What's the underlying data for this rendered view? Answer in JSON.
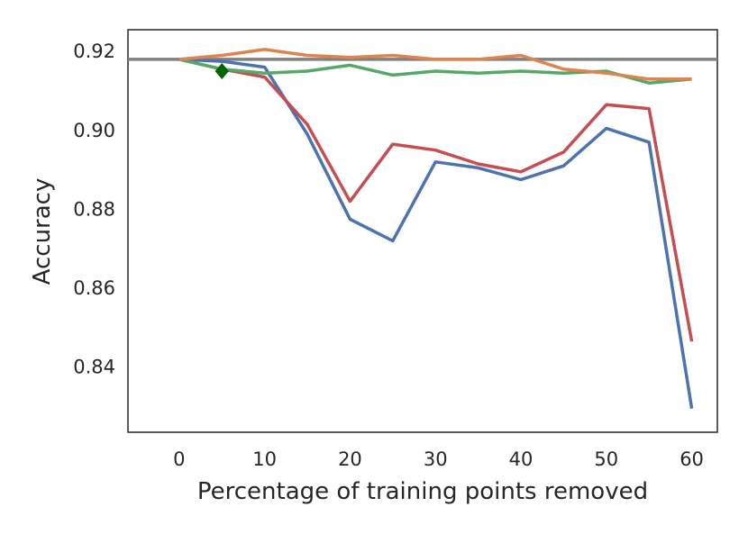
{
  "chart_data": {
    "type": "line",
    "title": "",
    "xlabel": "Percentage of training points removed",
    "ylabel": "Accuracy",
    "xlim": [
      -6,
      63
    ],
    "ylim": [
      0.8235,
      0.9255
    ],
    "xticks": [
      0,
      10,
      20,
      30,
      40,
      50,
      60
    ],
    "yticks": [
      0.84,
      0.86,
      0.88,
      0.9,
      0.92
    ],
    "xtick_labels": [
      "0",
      "10",
      "20",
      "30",
      "40",
      "50",
      "60"
    ],
    "ytick_labels": [
      "0.84",
      "0.86",
      "0.88",
      "0.90",
      "0.92"
    ],
    "grid": false,
    "legend": "none",
    "x": [
      0,
      5,
      10,
      15,
      20,
      25,
      30,
      35,
      40,
      45,
      50,
      55,
      60
    ],
    "series": [
      {
        "name": "blue",
        "color": "#4c72b0",
        "values": [
          0.918,
          0.9175,
          0.916,
          0.899,
          0.8775,
          0.872,
          0.892,
          0.8905,
          0.8875,
          0.891,
          0.9005,
          0.897,
          0.8295
        ]
      },
      {
        "name": "red",
        "color": "#c44e52",
        "values": [
          0.918,
          0.9155,
          0.9135,
          0.9015,
          0.882,
          0.8965,
          0.895,
          0.8915,
          0.8895,
          0.8945,
          0.9065,
          0.9055,
          0.8465
        ]
      },
      {
        "name": "green",
        "color": "#55a868",
        "values": [
          0.918,
          0.9155,
          0.9145,
          0.915,
          0.9165,
          0.914,
          0.915,
          0.9145,
          0.915,
          0.9145,
          0.915,
          0.912,
          0.913
        ]
      },
      {
        "name": "orange",
        "color": "#dd8452",
        "values": [
          0.918,
          0.919,
          0.9205,
          0.919,
          0.9185,
          0.919,
          0.918,
          0.918,
          0.919,
          0.9155,
          0.9145,
          0.913,
          0.913
        ]
      }
    ],
    "baseline": {
      "value": 0.918,
      "color": "#808080"
    },
    "marker": {
      "shape": "diamond",
      "x": 5,
      "y": 0.915,
      "color": "#006400"
    }
  }
}
